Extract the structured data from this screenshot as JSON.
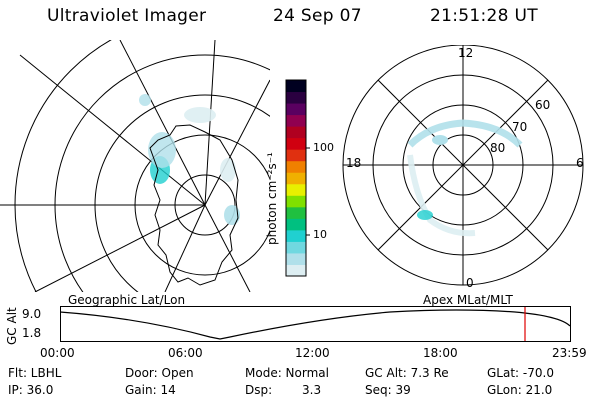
{
  "header": {
    "title": "Ultraviolet Imager",
    "date": "24 Sep 07",
    "time": "21:51:28 UT"
  },
  "left_panel": {
    "caption": "Geographic Lat/Lon"
  },
  "right_panel": {
    "caption": "Apex MLat/MLT",
    "mlt_labels": {
      "top": "12",
      "left": "18",
      "right": "6",
      "bottom": "0"
    },
    "lat_labels": [
      "60",
      "70",
      "80"
    ]
  },
  "colorbar": {
    "unit_label": "photon cm⁻²s⁻¹",
    "ticks": [
      "100",
      "10"
    ],
    "colors": [
      "#ddeef2",
      "#b0e0ea",
      "#70d8e0",
      "#20d0d0",
      "#00c080",
      "#20c040",
      "#80e000",
      "#e8f000",
      "#f0b000",
      "#f08000",
      "#e03010",
      "#d00010",
      "#b00020",
      "#900050",
      "#5a0060",
      "#2a0040",
      "#000020"
    ]
  },
  "altitude_strip": {
    "ylabel": "GC Alt",
    "y_ticks": [
      "9.0",
      "1.8"
    ],
    "x_ticks": [
      "00:00",
      "06:00",
      "12:00",
      "18:00",
      "23:59"
    ],
    "current_marker_color": "#e00000"
  },
  "info": {
    "filter": "Flt: LBHL",
    "ip": "IP: 36.0",
    "door": "Door: Open",
    "gain": "Gain: 14",
    "mode": "Mode: Normal",
    "dsp_label": "Dsp:",
    "dsp_value": "3.3",
    "gc_alt": "GC Alt: 7.3 Re",
    "seq": "Seq: 39",
    "glat": "GLat: -70.0",
    "glon": "GLon: 21.0"
  }
}
